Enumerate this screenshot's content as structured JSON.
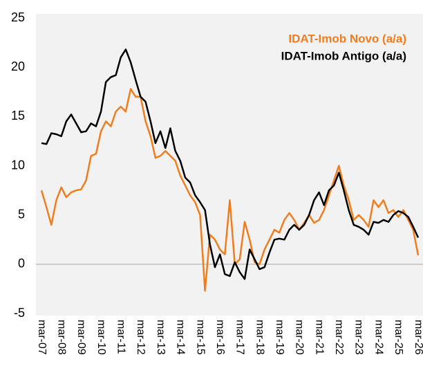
{
  "chart_data": {
    "type": "line",
    "categories": [
      "mar-07",
      null,
      null,
      null,
      "mar-08",
      null,
      null,
      null,
      "mar-09",
      null,
      null,
      null,
      "mar-10",
      null,
      null,
      null,
      "mar-11",
      null,
      null,
      null,
      "mar-12",
      null,
      null,
      null,
      "mar-13",
      null,
      null,
      null,
      "mar-14",
      null,
      null,
      null,
      "mar-15",
      null,
      null,
      null,
      "mar-16",
      null,
      null,
      null,
      "mar-17",
      null,
      null,
      null,
      "mar-18",
      null,
      null,
      null,
      "mar-19",
      null,
      null,
      null,
      "mar-20",
      null,
      null,
      null,
      "mar-21",
      null,
      null,
      null,
      "mar-22",
      null,
      null,
      null,
      "mar-23",
      null,
      null,
      null,
      "mar-24",
      null,
      null,
      null,
      "mar-25",
      null,
      null,
      null,
      "mar-26"
    ],
    "series": [
      {
        "name": "IDAT-Imob Novo  (a/a)",
        "color": "#f07c1c",
        "values": [
          7.5,
          5.8,
          4.0,
          6.5,
          7.8,
          6.8,
          7.3,
          7.5,
          7.6,
          8.5,
          11.0,
          11.2,
          13.5,
          14.5,
          14.0,
          15.5,
          16.0,
          15.5,
          17.8,
          17.0,
          17.0,
          14.5,
          13.0,
          10.8,
          11.0,
          11.5,
          11.0,
          10.5,
          9.0,
          8.0,
          7.0,
          6.3,
          5.0,
          -2.7,
          3.0,
          2.5,
          1.5,
          1.0,
          6.5,
          0.0,
          0.5,
          4.3,
          2.5,
          0.2,
          0.0,
          1.5,
          2.5,
          3.5,
          3.2,
          4.5,
          5.2,
          4.5,
          3.5,
          4.2,
          5.0,
          4.2,
          4.5,
          5.5,
          7.0,
          8.5,
          10.0,
          8.0,
          6.5,
          4.5,
          5.0,
          4.5,
          3.8,
          6.5,
          5.8,
          6.5,
          5.2,
          5.5,
          4.8,
          5.5,
          4.5,
          3.5,
          0.9
        ]
      },
      {
        "name": "IDAT-Imob Antigo  (a/a)",
        "color": "#000000",
        "values": [
          12.3,
          12.2,
          13.3,
          13.2,
          13.0,
          14.5,
          15.2,
          14.3,
          13.4,
          13.5,
          14.3,
          14.0,
          15.5,
          18.5,
          19.0,
          19.2,
          21.0,
          21.8,
          20.5,
          18.7,
          17.0,
          16.5,
          14.5,
          12.3,
          13.5,
          11.8,
          13.8,
          11.5,
          10.5,
          8.8,
          8.3,
          7.0,
          6.3,
          5.5,
          2.0,
          -0.3,
          1.0,
          -1.0,
          -1.2,
          0.2,
          -0.8,
          -1.5,
          1.5,
          0.5,
          -0.5,
          -0.3,
          1.2,
          2.5,
          2.6,
          2.5,
          3.5,
          4.0,
          3.5,
          4.0,
          5.0,
          6.5,
          7.3,
          6.0,
          7.5,
          8.0,
          9.3,
          7.5,
          5.5,
          4.0,
          3.8,
          3.5,
          3.0,
          4.3,
          4.2,
          4.5,
          4.3,
          5.0,
          5.4,
          5.2,
          4.8,
          3.8,
          2.7
        ]
      }
    ],
    "ylim": [
      -5,
      25
    ],
    "yticks": [
      -5,
      0,
      5,
      10,
      15,
      20,
      25
    ],
    "zero_line": true,
    "legend": "top-right"
  }
}
